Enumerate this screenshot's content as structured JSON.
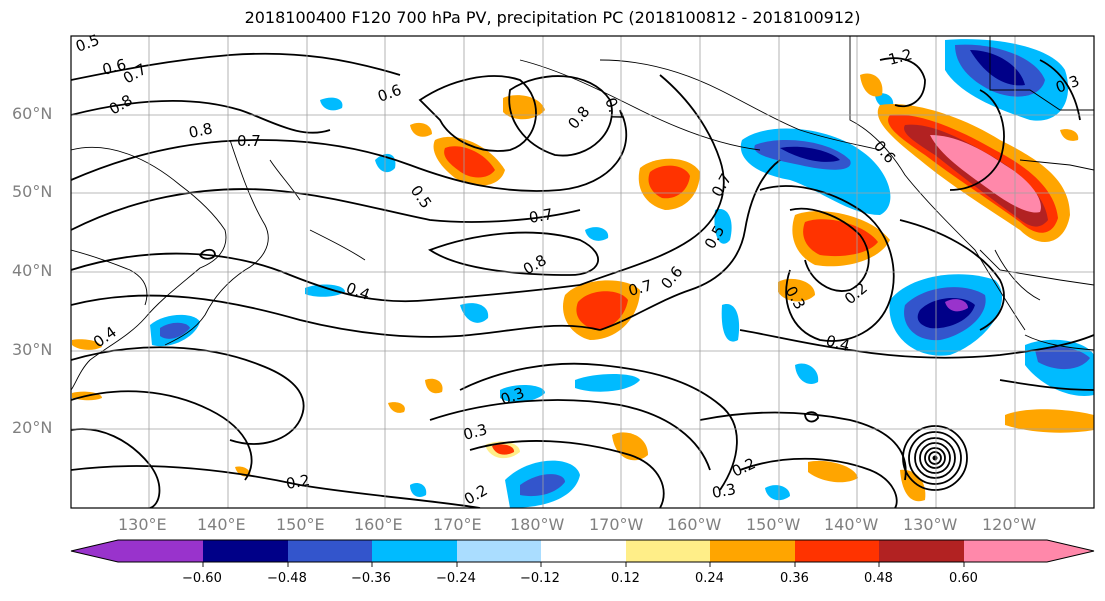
{
  "title": "2018100400 F120 700 hPa PV, precipitation PC (2018100812 - 2018100912)",
  "latitude_labels": [
    "60°N",
    "50°N",
    "40°N",
    "30°N",
    "20°N"
  ],
  "longitude_labels": [
    "130°E",
    "140°E",
    "150°E",
    "160°E",
    "170°E",
    "180°W",
    "170°W",
    "160°W",
    "150°W",
    "140°W",
    "130°W",
    "120°W"
  ],
  "colorbar": {
    "tick_labels": [
      "−0.60",
      "−0.48",
      "−0.36",
      "−0.24",
      "−0.12",
      "0.12",
      "0.24",
      "0.36",
      "0.48",
      "0.60"
    ],
    "colors": [
      "#9933cc",
      "#000088",
      "#3355cc",
      "#00bbff",
      "#aaddff",
      "#ffffff",
      "#ffee88",
      "#ffa500",
      "#ff3300",
      "#b22222",
      "#ff88aa"
    ]
  },
  "contour_labels": [
    "0.5",
    "0.6",
    "0.7",
    "0.8",
    "0.8",
    "0.7",
    "0.6",
    "0.5",
    "0.8",
    "0.7",
    "0.7",
    "0.8",
    "0.7",
    "0.6",
    "0.5",
    "0.4",
    "0.4",
    "0.3",
    "0.3",
    "0.3",
    "0.2",
    "0.2",
    "0.2",
    "0.3",
    "0.4",
    "0.2",
    "0.7",
    "0.6",
    "1.2",
    "0.3"
  ],
  "colors": {
    "contour": "#000000",
    "grid": "#a0a0a0",
    "coast": "#000000",
    "axis_text": "#808080"
  }
}
